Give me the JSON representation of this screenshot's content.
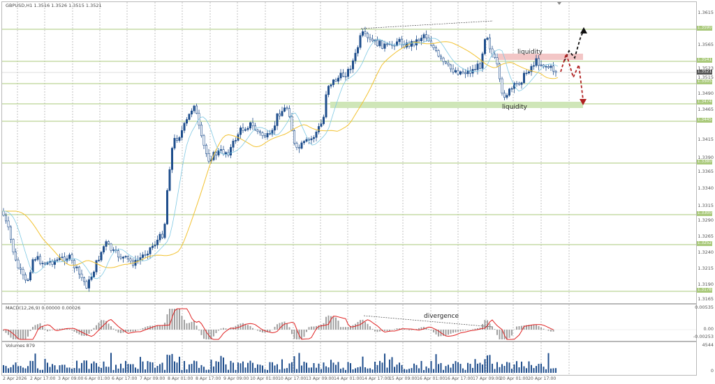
{
  "chart_header": "GBPUSD,H1  1.3516 1.3526 1.3515 1.3521",
  "price_axis": {
    "ticks": [
      "1.3615",
      "1.3565",
      "1.3490",
      "1.3465",
      "1.3415",
      "1.3390",
      "1.3365",
      "1.3340",
      "1.3315",
      "1.3290",
      "1.3265",
      "1.3240",
      "1.3215",
      "1.3190",
      "1.3165"
    ],
    "level_tags": [
      "1.3590",
      "1.3541",
      "1.3505",
      "1.3474",
      "1.3445",
      "1.3380",
      "1.3300",
      "1.3252",
      "1.3178"
    ],
    "current_price_tag": "1.3521",
    "below_current": "1.3515",
    "above_current": "1.3523"
  },
  "annotations": {
    "liquidity_top": "liquidity",
    "liquidity_bottom": "liquidity",
    "divergence": "divergence"
  },
  "macd": {
    "label": "MACD(12,26,9) 0.00000 0.00026",
    "ticks": [
      "0.00535",
      "0.00",
      "-0.00253"
    ]
  },
  "volume": {
    "label": "Volumes 879",
    "ticks": [
      "4544",
      "0"
    ]
  },
  "time_axis": [
    "2 Apr 2026",
    "2 Apr 17:00",
    "3 Apr 09:00",
    "6 Apr 01:00",
    "6 Apr 17:00",
    "7 Apr 09:00",
    "8 Apr 01:00",
    "8 Apr 17:00",
    "9 Apr 09:00",
    "10 Apr 01:00",
    "10 Apr 17:00",
    "13 Apr 09:00",
    "14 Apr 01:00",
    "14 Apr 17:00",
    "15 Apr 09:00",
    "16 Apr 01:00",
    "16 Apr 17:00",
    "17 Apr 09:00",
    "20 Apr 01:00",
    "20 Apr 17:00"
  ],
  "colors": {
    "level_line": "#a9c97a",
    "candle": "#1f4e8c",
    "ma_fast": "#7ec8e3",
    "ma_slow": "#f2c230",
    "macd_signal": "#e02020",
    "macd_hist": "#a0a0a0",
    "volume_bar": "#1f4e8c",
    "liquidity_red": "#f3c6c6",
    "liquidity_green": "#cfe6b8",
    "arrow_up": "#111111",
    "arrow_down": "#b02020"
  }
}
